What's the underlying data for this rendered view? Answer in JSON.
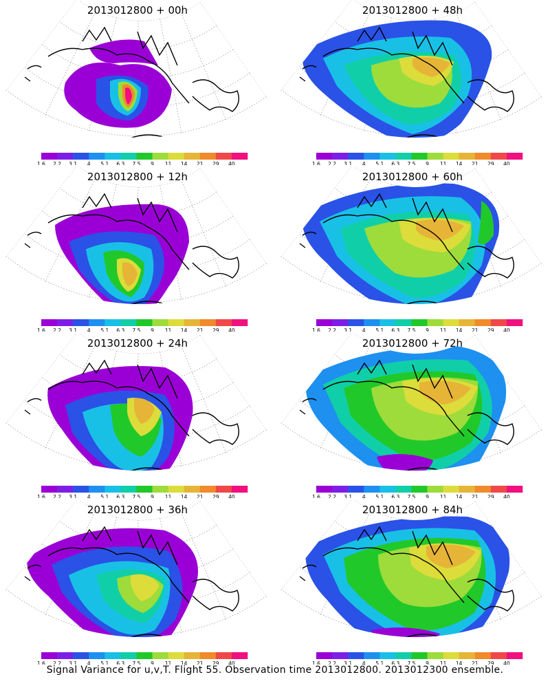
{
  "chart_data": {
    "type": "heatmap",
    "projection": "polar stereographic",
    "base_time": "2013012800",
    "panels": [
      {
        "title": "2013012800 + 00h",
        "lead_hours": 0
      },
      {
        "title": "2013012800 + 12h",
        "lead_hours": 12
      },
      {
        "title": "2013012800 + 24h",
        "lead_hours": 24
      },
      {
        "title": "2013012800 + 36h",
        "lead_hours": 36
      },
      {
        "title": "2013012800 + 48h",
        "lead_hours": 48
      },
      {
        "title": "2013012800 + 60h",
        "lead_hours": 60
      },
      {
        "title": "2013012800 + 72h",
        "lead_hours": 72
      },
      {
        "title": "2013012800 + 84h",
        "lead_hours": 84
      }
    ],
    "colorbar": {
      "levels": [
        "1.6",
        "2.2",
        "3.1",
        "4",
        "5.1",
        "6.3",
        "7.5",
        "9",
        "11",
        "14",
        "21",
        "29",
        "40"
      ],
      "colors": [
        "#9a00d6",
        "#7d1ee6",
        "#2a52e6",
        "#1d90f0",
        "#19c0e6",
        "#10cfa8",
        "#21c82a",
        "#9ddc3a",
        "#dcdc3a",
        "#e6b436",
        "#f08a2a",
        "#f04848",
        "#f0107e"
      ]
    },
    "footer": "Signal Variance for u,v,T. Flight 55. Observation time 2013012800. 2013012300 ensemble."
  }
}
